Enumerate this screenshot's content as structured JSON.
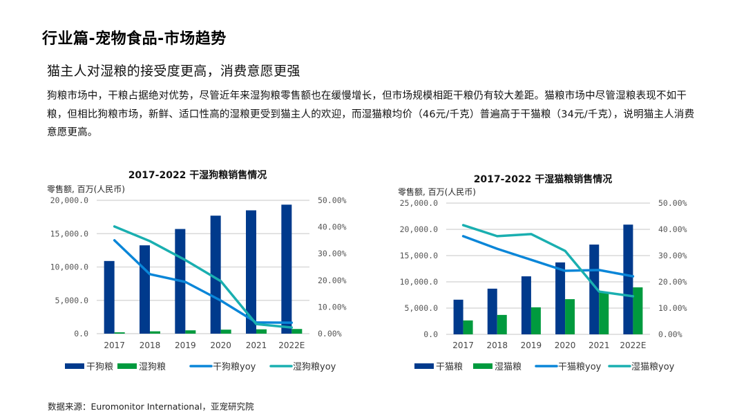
{
  "header": {
    "title": "行业篇-宠物食品-市场趋势",
    "subtitle": "猫主人对湿粮的接受度更高，消费意愿更强",
    "body": "狗粮市场中，干粮占据绝对优势，尽管近年来湿狗粮零售额也在缓慢增长，但市场规模相距干粮仍有较大差距。猫粮市场中尽管湿粮表现不如干粮，但相比狗粮市场，新鲜、适口性高的湿粮更受到猫主人的欢迎，而湿猫粮均价（46元/千克）普遍高于干猫粮（34元/千克），说明猫主人消费意愿更高。"
  },
  "footer": {
    "source": "数据来源：Euromonitor International，亚宠研究院"
  },
  "colors": {
    "dry_bar": "#003A8C",
    "wet_bar": "#009A3E",
    "dry_yoy": "#0A86D8",
    "wet_yoy": "#1AAFB0",
    "grid": "#D9D9D9"
  },
  "chart_data": [
    {
      "type": "bar",
      "title": "2017-2022 干湿狗粮销售情况",
      "ylabel": "零售额, 百万(人民币)",
      "categories": [
        "2017",
        "2018",
        "2019",
        "2020",
        "2021",
        "2022E"
      ],
      "ylim": [
        0,
        20000
      ],
      "yticks": [
        "0.0",
        "5,000.0",
        "10,000.0",
        "15,000.0",
        "20,000.0"
      ],
      "y2lim": [
        0,
        50
      ],
      "y2ticks": [
        "0.00%",
        "10.00%",
        "20.00%",
        "30.00%",
        "40.00%",
        "50.00%"
      ],
      "grid": true,
      "legend_position": "bottom",
      "series": [
        {
          "name": "干狗粮",
          "kind": "bar",
          "axis": "left",
          "values": [
            10900,
            13250,
            15700,
            17700,
            18500,
            19350
          ]
        },
        {
          "name": "湿狗粮",
          "kind": "bar",
          "axis": "left",
          "values": [
            200,
            350,
            500,
            600,
            650,
            700
          ]
        },
        {
          "name": "干狗粮yoy",
          "kind": "line",
          "axis": "right",
          "values": [
            35.0,
            22.3,
            19.4,
            12.4,
            4.2,
            4.1
          ]
        },
        {
          "name": "湿狗粮yoy",
          "kind": "line",
          "axis": "right",
          "values": [
            40.2,
            34.7,
            27.6,
            19.7,
            3.6,
            2.3
          ]
        }
      ]
    },
    {
      "type": "bar",
      "title": "2017-2022 干湿猫粮销售情况",
      "ylabel": "零售额, 百万(人民币)",
      "categories": [
        "2017",
        "2018",
        "2019",
        "2020",
        "2021",
        "2022E"
      ],
      "ylim": [
        0,
        25000
      ],
      "yticks": [
        "0.0",
        "5,000.0",
        "10,000.0",
        "15,000.0",
        "20,000.0",
        "25,000.0"
      ],
      "y2lim": [
        0,
        50
      ],
      "y2ticks": [
        "0.00%",
        "10.00%",
        "20.00%",
        "30.00%",
        "40.00%",
        "50.00%"
      ],
      "grid": true,
      "legend_position": "bottom",
      "series": [
        {
          "name": "干猫粮",
          "kind": "bar",
          "axis": "left",
          "values": [
            6600,
            8700,
            11050,
            13700,
            17100,
            20900
          ]
        },
        {
          "name": "湿猫粮",
          "kind": "bar",
          "axis": "left",
          "values": [
            2650,
            3700,
            5150,
            6700,
            8000,
            8950
          ]
        },
        {
          "name": "干猫粮yoy",
          "kind": "line",
          "axis": "right",
          "values": [
            37.4,
            32.6,
            28.4,
            24.2,
            24.5,
            22.1
          ]
        },
        {
          "name": "湿猫粮yoy",
          "kind": "line",
          "axis": "right",
          "values": [
            41.6,
            37.4,
            38.2,
            31.8,
            16.3,
            14.5
          ]
        }
      ]
    }
  ]
}
